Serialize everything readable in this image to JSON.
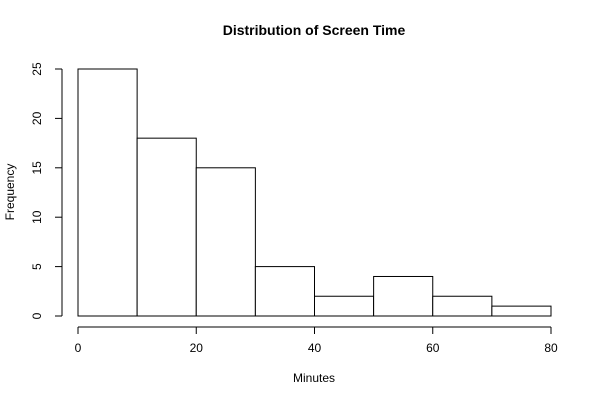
{
  "chart_data": {
    "type": "bar",
    "title": "Distribution of Screen Time",
    "xlabel": "Minutes",
    "ylabel": "Frequency",
    "bins": [
      {
        "from": 0,
        "to": 10,
        "count": 25
      },
      {
        "from": 10,
        "to": 20,
        "count": 18
      },
      {
        "from": 20,
        "to": 30,
        "count": 15
      },
      {
        "from": 30,
        "to": 40,
        "count": 5
      },
      {
        "from": 40,
        "to": 50,
        "count": 2
      },
      {
        "from": 50,
        "to": 60,
        "count": 4
      },
      {
        "from": 60,
        "to": 70,
        "count": 2
      },
      {
        "from": 70,
        "to": 80,
        "count": 1
      }
    ],
    "xlim": [
      0,
      80
    ],
    "ylim": [
      0,
      25
    ],
    "xticks": [
      "0",
      "20",
      "40",
      "60",
      "80"
    ],
    "yticks": [
      "0",
      "5",
      "10",
      "15",
      "20",
      "25"
    ],
    "grid": false,
    "legend": "none"
  }
}
